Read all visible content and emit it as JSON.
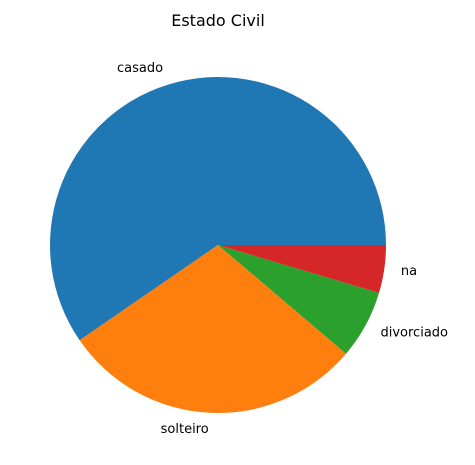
{
  "chart_data": {
    "type": "pie",
    "title": "Estado Civil",
    "labels": [
      "casado",
      "solteiro",
      "divorciado",
      "na"
    ],
    "values": [
      59.6,
      29.2,
      6.6,
      4.6
    ],
    "colors": [
      "#1f77b4",
      "#ff7f0e",
      "#2ca02c",
      "#d62728"
    ],
    "start_angle_deg": 0,
    "direction": "counterclockwise"
  }
}
